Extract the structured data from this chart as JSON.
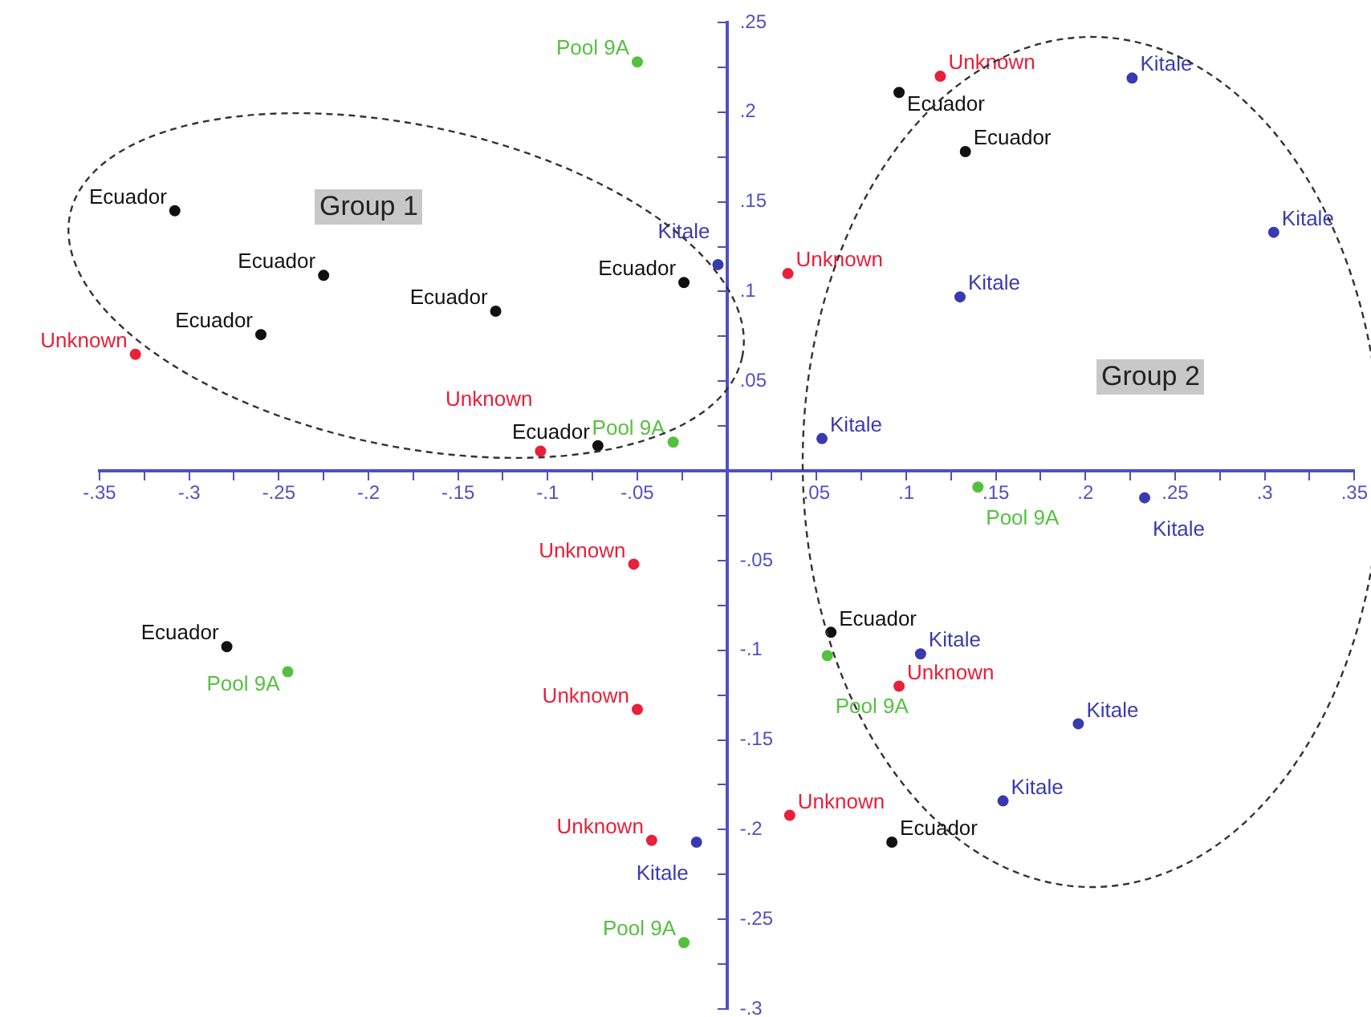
{
  "chart_data": {
    "type": "scatter",
    "marker": "circle",
    "legend": false,
    "grid": false,
    "xlim": [
      -0.35,
      0.35
    ],
    "xticks": [
      {
        "value": -0.35,
        "label": "-.35"
      },
      {
        "value": -0.325,
        "label": null
      },
      {
        "value": -0.3,
        "label": "-.3"
      },
      {
        "value": -0.275,
        "label": null
      },
      {
        "value": -0.25,
        "label": "-.25"
      },
      {
        "value": -0.225,
        "label": null
      },
      {
        "value": -0.2,
        "label": "-.2"
      },
      {
        "value": -0.175,
        "label": null
      },
      {
        "value": -0.15,
        "label": "-.15"
      },
      {
        "value": -0.125,
        "label": null
      },
      {
        "value": -0.1,
        "label": "-.1"
      },
      {
        "value": -0.075,
        "label": null
      },
      {
        "value": -0.05,
        "label": "-.05"
      },
      {
        "value": -0.025,
        "label": null
      },
      {
        "value": 0,
        "label": null
      },
      {
        "value": 0.025,
        "label": null
      },
      {
        "value": 0.05,
        "label": ".05"
      },
      {
        "value": 0.075,
        "label": null
      },
      {
        "value": 0.1,
        "label": ".1"
      },
      {
        "value": 0.125,
        "label": null
      },
      {
        "value": 0.15,
        "label": ".15"
      },
      {
        "value": 0.175,
        "label": null
      },
      {
        "value": 0.2,
        "label": ".2"
      },
      {
        "value": 0.225,
        "label": null
      },
      {
        "value": 0.25,
        "label": ".25"
      },
      {
        "value": 0.275,
        "label": null
      },
      {
        "value": 0.3,
        "label": ".3"
      },
      {
        "value": 0.325,
        "label": null
      },
      {
        "value": 0.35,
        "label": ".35"
      }
    ],
    "ylim": [
      -0.3,
      0.25
    ],
    "yticks": [
      {
        "value": -0.3,
        "label": "-.3"
      },
      {
        "value": -0.275,
        "label": null
      },
      {
        "value": -0.25,
        "label": "-.25"
      },
      {
        "value": -0.225,
        "label": null
      },
      {
        "value": -0.2,
        "label": "-.2"
      },
      {
        "value": -0.175,
        "label": null
      },
      {
        "value": -0.15,
        "label": "-.15"
      },
      {
        "value": -0.125,
        "label": null
      },
      {
        "value": -0.1,
        "label": "-.1"
      },
      {
        "value": -0.075,
        "label": null
      },
      {
        "value": -0.05,
        "label": "-.05"
      },
      {
        "value": -0.025,
        "label": null
      },
      {
        "value": 0,
        "label": null
      },
      {
        "value": 0.025,
        "label": null
      },
      {
        "value": 0.05,
        "label": ".05"
      },
      {
        "value": 0.075,
        "label": null
      },
      {
        "value": 0.1,
        "label": ".1"
      },
      {
        "value": 0.125,
        "label": null
      },
      {
        "value": 0.15,
        "label": ".15"
      },
      {
        "value": 0.175,
        "label": null
      },
      {
        "value": 0.2,
        "label": ".2"
      },
      {
        "value": 0.225,
        "label": null
      },
      {
        "value": 0.25,
        "label": ".25"
      }
    ],
    "annotations": [
      "Group 1",
      "Group 2"
    ],
    "series": [
      {
        "name": "Ecuador",
        "color": "#111111",
        "x": [
          -0.308,
          -0.225,
          -0.26,
          -0.129,
          -0.024,
          -0.072,
          0.096,
          0.133,
          -0.279,
          0.058,
          0.092
        ],
        "values": [
          0.145,
          0.109,
          0.076,
          0.089,
          0.105,
          0.014,
          0.211,
          0.178,
          -0.098,
          -0.09,
          -0.207
        ]
      },
      {
        "name": "Unknown",
        "color": "#e8203a",
        "x": [
          -0.33,
          -0.104,
          0.034,
          0.119,
          -0.052,
          -0.05,
          -0.042,
          0.035,
          0.096
        ],
        "values": [
          0.065,
          0.011,
          0.11,
          0.22,
          -0.052,
          -0.133,
          -0.206,
          -0.192,
          -0.12
        ]
      },
      {
        "name": "Kitale",
        "color": "#3a3ab0",
        "x": [
          -0.005,
          0.13,
          0.226,
          0.305,
          0.053,
          0.233,
          0.108,
          0.196,
          0.154,
          -0.017
        ],
        "values": [
          0.115,
          0.097,
          0.219,
          0.133,
          0.018,
          -0.015,
          -0.102,
          -0.141,
          -0.184,
          -0.207
        ]
      },
      {
        "name": "Pool 9A",
        "color": "#55c040",
        "x": [
          -0.05,
          -0.03,
          -0.245,
          0.14,
          0.056,
          -0.024
        ],
        "values": [
          0.228,
          0.016,
          -0.112,
          -0.009,
          -0.103,
          -0.263
        ]
      }
    ]
  }
}
